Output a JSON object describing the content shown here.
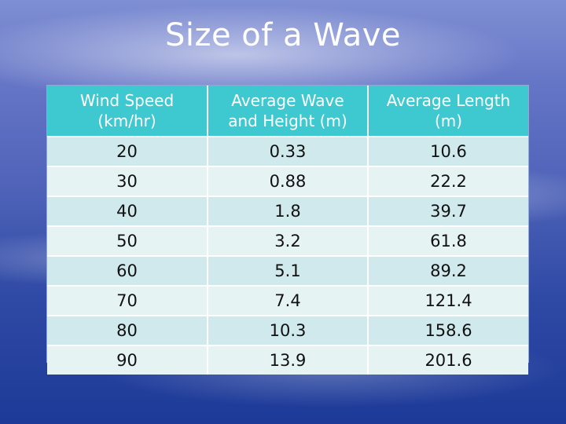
{
  "slide": {
    "title": "Size of a Wave"
  },
  "table": {
    "headers": [
      "Wind Speed (km/hr)",
      "Average Wave and Height (m)",
      "Average Length (m)"
    ],
    "header_lines": [
      [
        "Wind Speed",
        "(km/hr)"
      ],
      [
        "Average Wave",
        "and Height (m)"
      ],
      [
        "Average Length",
        "(m)"
      ]
    ],
    "rows": [
      [
        "20",
        "0.33",
        "10.6"
      ],
      [
        "30",
        "0.88",
        "22.2"
      ],
      [
        "40",
        "1.8",
        "39.7"
      ],
      [
        "50",
        "3.2",
        "61.8"
      ],
      [
        "60",
        "5.1",
        "89.2"
      ],
      [
        "70",
        "7.4",
        "121.4"
      ],
      [
        "80",
        "10.3",
        "158.6"
      ],
      [
        "90",
        "13.9",
        "201.6"
      ]
    ]
  },
  "colors": {
    "header_bg": "#3ec8cf",
    "row_odd_bg": "#cfe9ec",
    "row_even_bg": "#e6f3f3"
  }
}
